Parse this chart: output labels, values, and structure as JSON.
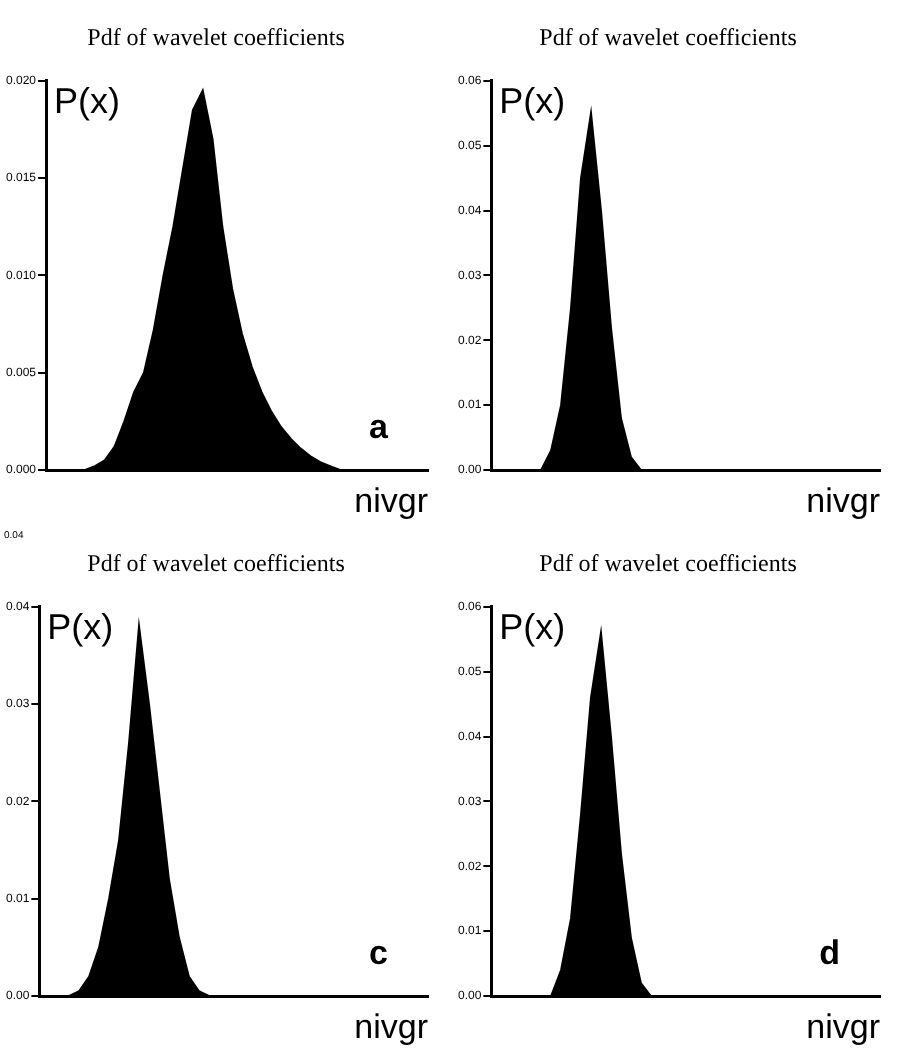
{
  "chart_data": [
    {
      "type": "area",
      "title": "Pdf of wavelet coefficients",
      "xlabel": "nivgr",
      "ylabel": "P(x)",
      "annotations": [
        "a"
      ],
      "categories": [
        null,
        null,
        null,
        null,
        null,
        null,
        null,
        null,
        null,
        null,
        null,
        null,
        null,
        null,
        null,
        null,
        null,
        null,
        null,
        null,
        null,
        null,
        null,
        null,
        null,
        null,
        null,
        null,
        null,
        null,
        null,
        null,
        null,
        null,
        null,
        null,
        null,
        null,
        null,
        null
      ],
      "series": [
        {
          "color": "#000000",
          "values": [
            0,
            0,
            0,
            0,
            0,
            0.0002,
            0.0005,
            0.0012,
            0.0025,
            0.004,
            0.005,
            0.0072,
            0.01,
            0.0125,
            0.0155,
            0.0185,
            0.0195,
            0.017,
            0.0125,
            0.0093,
            0.007,
            0.0053,
            0.004,
            0.003,
            0.0022,
            0.0016,
            0.0011,
            0.0007,
            0.0004,
            0.0002,
            0,
            0,
            0,
            0,
            0,
            0,
            0,
            0,
            0,
            0
          ]
        }
      ],
      "ylim": [
        0,
        0.02
      ],
      "yticks": [
        {
          "value": 0,
          "label": "0.000"
        },
        {
          "value": 0.005,
          "label": "0.005"
        },
        {
          "value": 0.01,
          "label": "0.010"
        },
        {
          "value": 0.015,
          "label": "0.015"
        },
        {
          "value": 0.02,
          "label": "0.020"
        }
      ],
      "tick_labels": "y"
    },
    {
      "type": "area",
      "title": "Pdf of wavelet coefficients",
      "xlabel": "nivgr",
      "ylabel": "P(x)",
      "categories": [
        null,
        null,
        null,
        null,
        null,
        null,
        null,
        null,
        null,
        null,
        null,
        null,
        null,
        null,
        null,
        null,
        null,
        null,
        null,
        null,
        null,
        null,
        null,
        null,
        null,
        null,
        null,
        null,
        null,
        null,
        null,
        null,
        null,
        null,
        null,
        null,
        null,
        null,
        null,
        null
      ],
      "series": [
        {
          "color": "#000000",
          "values": [
            0,
            0,
            0,
            0,
            0,
            0,
            0.003,
            0.01,
            0.025,
            0.045,
            0.055,
            0.04,
            0.022,
            0.008,
            0.002,
            0,
            0,
            0,
            0,
            0,
            0,
            0,
            0,
            0,
            0,
            0,
            0,
            0,
            0,
            0,
            0,
            0,
            0,
            0,
            0,
            0,
            0,
            0,
            0,
            0
          ]
        }
      ],
      "ylim": [
        0,
        0.06
      ],
      "yticks": [
        {
          "value": 0,
          "label": "0.00"
        },
        {
          "value": 0.01,
          "label": "0.01"
        },
        {
          "value": 0.02,
          "label": "0.02"
        },
        {
          "value": 0.03,
          "label": "0.03"
        },
        {
          "value": 0.04,
          "label": "0.04"
        },
        {
          "value": 0.05,
          "label": "0.05"
        },
        {
          "value": 0.06,
          "label": "0.06"
        }
      ],
      "tick_labels": "y"
    },
    {
      "type": "area",
      "title": "Pdf of wavelet coefficients",
      "xlabel": "nivgr",
      "ylabel": "P(x)",
      "annotations": [
        "0.04",
        "c"
      ],
      "categories": [
        null,
        null,
        null,
        null,
        null,
        null,
        null,
        null,
        null,
        null,
        null,
        null,
        null,
        null,
        null,
        null,
        null,
        null,
        null,
        null,
        null,
        null,
        null,
        null,
        null,
        null,
        null,
        null,
        null,
        null,
        null,
        null,
        null,
        null,
        null,
        null,
        null,
        null,
        null,
        null
      ],
      "series": [
        {
          "color": "#000000",
          "values": [
            0,
            0,
            0,
            0,
            0.0005,
            0.002,
            0.005,
            0.01,
            0.016,
            0.026,
            0.038,
            0.03,
            0.021,
            0.012,
            0.006,
            0.002,
            0.0005,
            0,
            0,
            0,
            0,
            0,
            0,
            0,
            0,
            0,
            0,
            0,
            0,
            0,
            0,
            0,
            0,
            0,
            0,
            0,
            0,
            0,
            0,
            0
          ]
        }
      ],
      "ylim": [
        0,
        0.04
      ],
      "yticks": [
        {
          "value": 0,
          "label": "0.00"
        },
        {
          "value": 0.01,
          "label": "0.01"
        },
        {
          "value": 0.02,
          "label": "0.02"
        },
        {
          "value": 0.03,
          "label": "0.03"
        },
        {
          "value": 0.04,
          "label": "0.04"
        }
      ],
      "tick_labels": "y"
    },
    {
      "type": "area",
      "title": "Pdf of wavelet coefficients",
      "xlabel": "nivgr",
      "ylabel": "P(x)",
      "annotations": [
        "d"
      ],
      "categories": [
        null,
        null,
        null,
        null,
        null,
        null,
        null,
        null,
        null,
        null,
        null,
        null,
        null,
        null,
        null,
        null,
        null,
        null,
        null,
        null,
        null,
        null,
        null,
        null,
        null,
        null,
        null,
        null,
        null,
        null,
        null,
        null,
        null,
        null,
        null,
        null,
        null,
        null,
        null,
        null
      ],
      "series": [
        {
          "color": "#000000",
          "values": [
            0,
            0,
            0,
            0,
            0,
            0,
            0,
            0.004,
            0.012,
            0.028,
            0.046,
            0.056,
            0.04,
            0.022,
            0.009,
            0.002,
            0,
            0,
            0,
            0,
            0,
            0,
            0,
            0,
            0,
            0,
            0,
            0,
            0,
            0,
            0,
            0,
            0,
            0,
            0,
            0,
            0,
            0,
            0,
            0
          ]
        }
      ],
      "ylim": [
        0,
        0.06
      ],
      "yticks": [
        {
          "value": 0,
          "label": "0.00"
        },
        {
          "value": 0.01,
          "label": "0.01"
        },
        {
          "value": 0.02,
          "label": "0.02"
        },
        {
          "value": 0.03,
          "label": "0.03"
        },
        {
          "value": 0.04,
          "label": "0.04"
        },
        {
          "value": 0.05,
          "label": "0.05"
        },
        {
          "value": 0.06,
          "label": "0.06"
        }
      ],
      "tick_labels": "y"
    }
  ]
}
